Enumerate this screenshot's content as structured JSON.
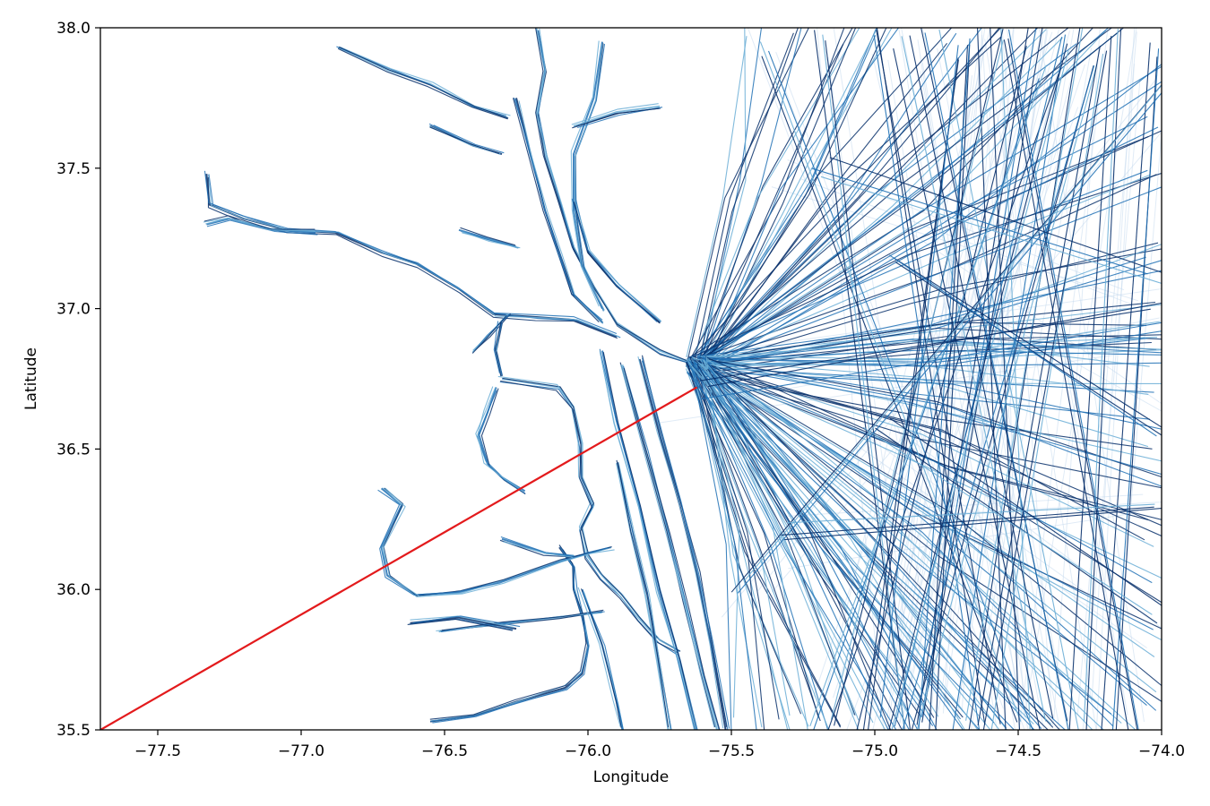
{
  "chart_data": {
    "type": "line",
    "title": "",
    "xlabel": "Longitude",
    "ylabel": "Latitude",
    "xlim": [
      -77.7,
      -74.0
    ],
    "ylim": [
      35.5,
      38.0
    ],
    "grid": false,
    "x_ticks": [
      -77.5,
      -77.0,
      -76.5,
      -76.0,
      -75.5,
      -75.0,
      -74.5,
      -74.0
    ],
    "x_tick_labels": [
      "−77.5",
      "−77.0",
      "−76.5",
      "−76.0",
      "−75.5",
      "−75.0",
      "−74.5",
      "−74.0"
    ],
    "y_ticks": [
      35.5,
      36.0,
      36.5,
      37.0,
      37.5,
      38.0
    ],
    "y_tick_labels": [
      "35.5",
      "36.0",
      "36.5",
      "37.0",
      "37.5",
      "38.0"
    ],
    "colors": {
      "track_dark": "#08306b",
      "track_mid": "#2171b5",
      "track_light": "#6baed6",
      "track_pale": "#c6dbef",
      "highlight": "#e31a1c"
    },
    "highlight_segment": {
      "x": [
        -77.7,
        -75.62
      ],
      "y": [
        35.5,
        36.72
      ]
    },
    "hub": {
      "x": -75.62,
      "y": 36.8
    },
    "tracks": {
      "river_chains": [
        [
          [
            -77.33,
            37.48
          ],
          [
            -77.32,
            37.37
          ],
          [
            -77.2,
            37.32
          ],
          [
            -77.05,
            37.28
          ],
          [
            -76.88,
            37.27
          ],
          [
            -76.72,
            37.2
          ],
          [
            -76.6,
            37.16
          ],
          [
            -76.45,
            37.07
          ],
          [
            -76.33,
            36.98
          ],
          [
            -76.18,
            36.97
          ],
          [
            -76.05,
            36.96
          ],
          [
            -75.9,
            36.9
          ]
        ],
        [
          [
            -77.33,
            37.3
          ],
          [
            -77.25,
            37.32
          ],
          [
            -77.1,
            37.28
          ],
          [
            -76.95,
            37.27
          ]
        ],
        [
          [
            -76.87,
            37.93
          ],
          [
            -76.7,
            37.85
          ],
          [
            -76.55,
            37.8
          ],
          [
            -76.4,
            37.72
          ],
          [
            -76.28,
            37.68
          ]
        ],
        [
          [
            -76.55,
            37.65
          ],
          [
            -76.4,
            37.58
          ],
          [
            -76.3,
            37.55
          ]
        ],
        [
          [
            -76.45,
            37.28
          ],
          [
            -76.35,
            37.25
          ],
          [
            -76.25,
            37.22
          ]
        ],
        [
          [
            -76.28,
            36.98
          ],
          [
            -76.35,
            36.9
          ],
          [
            -76.4,
            36.85
          ]
        ],
        [
          [
            -76.3,
            36.95
          ],
          [
            -76.32,
            36.85
          ],
          [
            -76.3,
            36.76
          ]
        ],
        [
          [
            -76.32,
            36.72
          ],
          [
            -76.35,
            36.63
          ],
          [
            -76.38,
            36.55
          ],
          [
            -76.35,
            36.45
          ],
          [
            -76.3,
            36.4
          ],
          [
            -76.22,
            36.35
          ]
        ],
        [
          [
            -76.3,
            36.75
          ],
          [
            -76.1,
            36.72
          ],
          [
            -76.05,
            36.65
          ],
          [
            -76.02,
            36.52
          ],
          [
            -76.02,
            36.4
          ],
          [
            -75.98,
            36.3
          ],
          [
            -76.02,
            36.22
          ],
          [
            -76.0,
            36.12
          ],
          [
            -75.95,
            36.05
          ],
          [
            -75.88,
            35.98
          ],
          [
            -75.82,
            35.9
          ],
          [
            -75.75,
            35.82
          ],
          [
            -75.68,
            35.78
          ]
        ],
        [
          [
            -76.55,
            35.53
          ],
          [
            -76.4,
            35.55
          ],
          [
            -76.25,
            35.6
          ],
          [
            -76.08,
            35.65
          ],
          [
            -76.02,
            35.7
          ],
          [
            -76.0,
            35.8
          ],
          [
            -76.02,
            35.9
          ],
          [
            -76.05,
            36.0
          ],
          [
            -76.05,
            36.08
          ],
          [
            -76.1,
            36.15
          ]
        ],
        [
          [
            -76.72,
            36.36
          ],
          [
            -76.65,
            36.3
          ],
          [
            -76.72,
            36.15
          ],
          [
            -76.7,
            36.05
          ],
          [
            -76.6,
            35.98
          ],
          [
            -76.45,
            35.99
          ],
          [
            -76.3,
            36.03
          ],
          [
            -76.1,
            36.1
          ],
          [
            -76.0,
            36.13
          ],
          [
            -75.92,
            36.15
          ]
        ],
        [
          [
            -76.52,
            35.85
          ],
          [
            -76.3,
            35.88
          ],
          [
            -76.1,
            35.9
          ],
          [
            -75.95,
            35.92
          ]
        ],
        [
          [
            -76.62,
            35.88
          ],
          [
            -76.45,
            35.9
          ],
          [
            -76.25,
            35.86
          ]
        ],
        [
          [
            -76.3,
            36.18
          ],
          [
            -76.15,
            36.13
          ],
          [
            -76.05,
            36.12
          ]
        ],
        [
          [
            -76.18,
            38.0
          ],
          [
            -76.15,
            37.85
          ],
          [
            -76.18,
            37.7
          ],
          [
            -76.15,
            37.55
          ],
          [
            -76.1,
            37.38
          ],
          [
            -76.05,
            37.22
          ],
          [
            -75.98,
            37.08
          ],
          [
            -75.9,
            36.95
          ],
          [
            -75.75,
            36.85
          ],
          [
            -75.62,
            36.8
          ]
        ],
        [
          [
            -76.25,
            37.75
          ],
          [
            -76.2,
            37.55
          ],
          [
            -76.15,
            37.35
          ],
          [
            -76.1,
            37.2
          ],
          [
            -76.05,
            37.05
          ],
          [
            -75.95,
            36.95
          ]
        ],
        [
          [
            -75.95,
            37.95
          ],
          [
            -75.98,
            37.75
          ],
          [
            -76.05,
            37.55
          ],
          [
            -76.05,
            37.35
          ],
          [
            -76.02,
            37.15
          ],
          [
            -75.95,
            37.0
          ]
        ],
        [
          [
            -76.05,
            37.65
          ],
          [
            -75.9,
            37.7
          ],
          [
            -75.75,
            37.72
          ]
        ],
        [
          [
            -76.05,
            37.38
          ],
          [
            -76.0,
            37.2
          ],
          [
            -75.9,
            37.08
          ],
          [
            -75.75,
            36.95
          ]
        ],
        [
          [
            -75.95,
            36.85
          ],
          [
            -75.9,
            36.6
          ],
          [
            -75.82,
            36.3
          ],
          [
            -75.75,
            36.0
          ],
          [
            -75.68,
            35.75
          ],
          [
            -75.62,
            35.5
          ]
        ],
        [
          [
            -75.88,
            36.8
          ],
          [
            -75.8,
            36.5
          ],
          [
            -75.72,
            36.2
          ],
          [
            -75.66,
            35.95
          ],
          [
            -75.6,
            35.7
          ],
          [
            -75.55,
            35.5
          ]
        ],
        [
          [
            -75.82,
            36.82
          ],
          [
            -75.75,
            36.55
          ],
          [
            -75.68,
            36.3
          ],
          [
            -75.62,
            36.05
          ],
          [
            -75.57,
            35.8
          ],
          [
            -75.52,
            35.5
          ]
        ],
        [
          [
            -76.02,
            36.0
          ],
          [
            -75.95,
            35.8
          ],
          [
            -75.9,
            35.6
          ],
          [
            -75.88,
            35.5
          ]
        ],
        [
          [
            -75.9,
            36.45
          ],
          [
            -75.85,
            36.2
          ],
          [
            -75.8,
            35.98
          ],
          [
            -75.76,
            35.75
          ],
          [
            -75.72,
            35.5
          ]
        ]
      ],
      "fan_directions": [
        [
          -75.4,
          38.0
        ],
        [
          -75.25,
          38.0
        ],
        [
          -75.1,
          38.0
        ],
        [
          -74.95,
          38.0
        ],
        [
          -74.75,
          38.0
        ],
        [
          -74.55,
          38.0
        ],
        [
          -74.35,
          38.0
        ],
        [
          -74.15,
          38.0
        ],
        [
          -74.0,
          37.85
        ],
        [
          -74.0,
          37.65
        ],
        [
          -74.0,
          37.45
        ],
        [
          -74.0,
          37.2
        ],
        [
          -74.0,
          37.0
        ],
        [
          -74.0,
          36.95
        ],
        [
          -74.0,
          36.9
        ],
        [
          -74.0,
          36.85
        ],
        [
          -74.0,
          36.7
        ],
        [
          -74.0,
          36.55
        ],
        [
          -74.0,
          36.4
        ],
        [
          -74.0,
          36.2
        ],
        [
          -74.0,
          36.0
        ],
        [
          -74.0,
          35.8
        ],
        [
          -74.0,
          35.6
        ],
        [
          -74.15,
          35.5
        ],
        [
          -74.35,
          35.5
        ],
        [
          -74.55,
          35.5
        ],
        [
          -74.75,
          35.5
        ],
        [
          -74.85,
          35.5
        ],
        [
          -74.95,
          35.5
        ],
        [
          -75.05,
          35.5
        ],
        [
          -75.15,
          35.5
        ],
        [
          -75.25,
          35.5
        ],
        [
          -75.35,
          35.5
        ],
        [
          -75.45,
          35.5
        ],
        [
          -74.4,
          35.5
        ],
        [
          -74.6,
          35.5
        ],
        [
          -74.9,
          35.5
        ]
      ],
      "transit_lines": [
        [
          [
            -75.4,
            37.9
          ],
          [
            -74.5,
            35.5
          ]
        ],
        [
          [
            -75.2,
            38.0
          ],
          [
            -74.9,
            35.5
          ]
        ],
        [
          [
            -75.0,
            38.0
          ],
          [
            -74.6,
            35.5
          ]
        ],
        [
          [
            -74.8,
            38.0
          ],
          [
            -74.3,
            35.5
          ]
        ],
        [
          [
            -74.6,
            38.0
          ],
          [
            -74.5,
            35.5
          ]
        ],
        [
          [
            -74.45,
            38.0
          ],
          [
            -74.85,
            35.5
          ]
        ],
        [
          [
            -74.3,
            38.0
          ],
          [
            -74.7,
            35.5
          ]
        ],
        [
          [
            -74.15,
            38.0
          ],
          [
            -74.3,
            35.5
          ]
        ],
        [
          [
            -74.05,
            37.95
          ],
          [
            -74.2,
            35.5
          ]
        ],
        [
          [
            -74.25,
            37.9
          ],
          [
            -74.9,
            35.5
          ]
        ],
        [
          [
            -74.5,
            37.95
          ],
          [
            -75.1,
            35.5
          ]
        ],
        [
          [
            -74.7,
            37.9
          ],
          [
            -75.0,
            35.5
          ]
        ],
        [
          [
            -74.4,
            37.85
          ],
          [
            -75.2,
            35.5
          ]
        ],
        [
          [
            -74.9,
            37.95
          ],
          [
            -74.4,
            35.5
          ]
        ],
        [
          [
            -74.55,
            38.0
          ],
          [
            -74.1,
            35.5
          ]
        ],
        [
          [
            -74.35,
            37.95
          ],
          [
            -74.95,
            35.5
          ]
        ],
        [
          [
            -74.2,
            37.95
          ],
          [
            -74.6,
            35.5
          ]
        ],
        [
          [
            -74.65,
            37.95
          ],
          [
            -74.8,
            35.5
          ]
        ],
        [
          [
            -75.5,
            36.0
          ],
          [
            -74.0,
            37.8
          ]
        ],
        [
          [
            -75.3,
            36.2
          ],
          [
            -74.0,
            36.3
          ]
        ],
        [
          [
            -75.6,
            36.7
          ],
          [
            -74.0,
            36.98
          ]
        ],
        [
          [
            -75.2,
            37.5
          ],
          [
            -74.0,
            37.1
          ]
        ],
        [
          [
            -75.0,
            36.6
          ],
          [
            -74.0,
            35.9
          ]
        ],
        [
          [
            -74.95,
            37.2
          ],
          [
            -74.0,
            36.55
          ]
        ]
      ]
    }
  }
}
